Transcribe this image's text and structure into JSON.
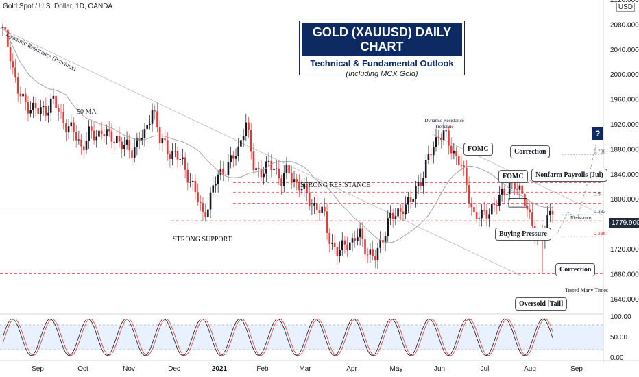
{
  "header": {
    "symbol_line": "Gold Spot / U.S. Dollar, 1D, OANDA",
    "currency": "USD"
  },
  "title_box": {
    "title": "GOLD (XAUUSD) DAILY CHART",
    "subtitle": "Technical & Fundamental Outlook",
    "note": "(Including MCX Gold)"
  },
  "last_price": "1779.900",
  "annotations": {
    "dynamic_resistance_prev": "Dynamic Resistance (Previous)",
    "ma50": "50 MA",
    "strong_support": "STRONG SUPPORT",
    "strong_resistance": "STRONG RESISTANCE",
    "dynamic_resistance_trendline_1": "Dynamic Resistance",
    "dynamic_resistance_trendline_2": "Trendline",
    "fomc_1": "FOMC",
    "fomc_2": "FOMC",
    "correction_1": "Correction",
    "correction_2": "Correction",
    "nfp": "Nonfarm Payrolls (Jul)",
    "buying_pressure": "Buying Pressure",
    "oversold": "Oversold [Tail]",
    "tested": "Tested Many Times",
    "resistance": "Resistance",
    "question": "?"
  },
  "fib_levels": [
    {
      "label": "0.786",
      "price": 1872
    },
    {
      "label": "0.618",
      "price": 1832
    },
    {
      "label": "0.5",
      "price": 1804
    },
    {
      "label": "0.382",
      "price": 1776
    },
    {
      "label": "0.236",
      "price": 1741
    }
  ],
  "colors": {
    "up": "#131722",
    "down": "#e53935",
    "level_line": "#e53935",
    "ma": "#a0a4ab",
    "title_bg": "#0d2a63",
    "osc_k": "#131722",
    "osc_d": "#e53935",
    "osc_band": "#d9e8fb"
  },
  "chart_data": {
    "type": "candlestick",
    "title": "Gold Spot / U.S. Dollar, 1D, OANDA",
    "ylim": [
      1620,
      2120
    ],
    "y_ticks": [
      "2120.000",
      "2080.000",
      "2040.000",
      "2000.000",
      "1960.000",
      "1920.000",
      "1880.000",
      "1840.000",
      "1800.000",
      "1760.000",
      "1720.000",
      "1680.000",
      "1640.000"
    ],
    "x_ticks": [
      "Sep",
      "Oct",
      "Nov",
      "Dec",
      "2021",
      "Feb",
      "Mar",
      "Apr",
      "May",
      "Jun",
      "Jul",
      "Aug",
      "Sep"
    ],
    "horizontal_levels": [
      1827,
      1812,
      1794,
      1766,
      1681
    ],
    "close_series_weekly": [
      2070,
      2040,
      1975,
      1955,
      1950,
      1940,
      1945,
      1960,
      1935,
      1920,
      1905,
      1885,
      1905,
      1900,
      1915,
      1895,
      1900,
      1885,
      1875,
      1900,
      1900,
      1955,
      1895,
      1880,
      1875,
      1860,
      1840,
      1810,
      1775,
      1800,
      1835,
      1850,
      1860,
      1880,
      1930,
      1855,
      1845,
      1850,
      1855,
      1830,
      1845,
      1830,
      1815,
      1800,
      1785,
      1775,
      1730,
      1710,
      1735,
      1730,
      1745,
      1720,
      1700,
      1735,
      1765,
      1775,
      1790,
      1790,
      1825,
      1840,
      1880,
      1905,
      1900,
      1880,
      1860,
      1820,
      1775,
      1770,
      1785,
      1790,
      1810,
      1830,
      1815,
      1810,
      1760,
      1730,
      1760,
      1780
    ],
    "oscillator": {
      "ylim": [
        0,
        100
      ],
      "y_ticks": [
        "100.00",
        "50.00",
        "0.00"
      ],
      "bands": [
        80,
        20
      ]
    }
  }
}
